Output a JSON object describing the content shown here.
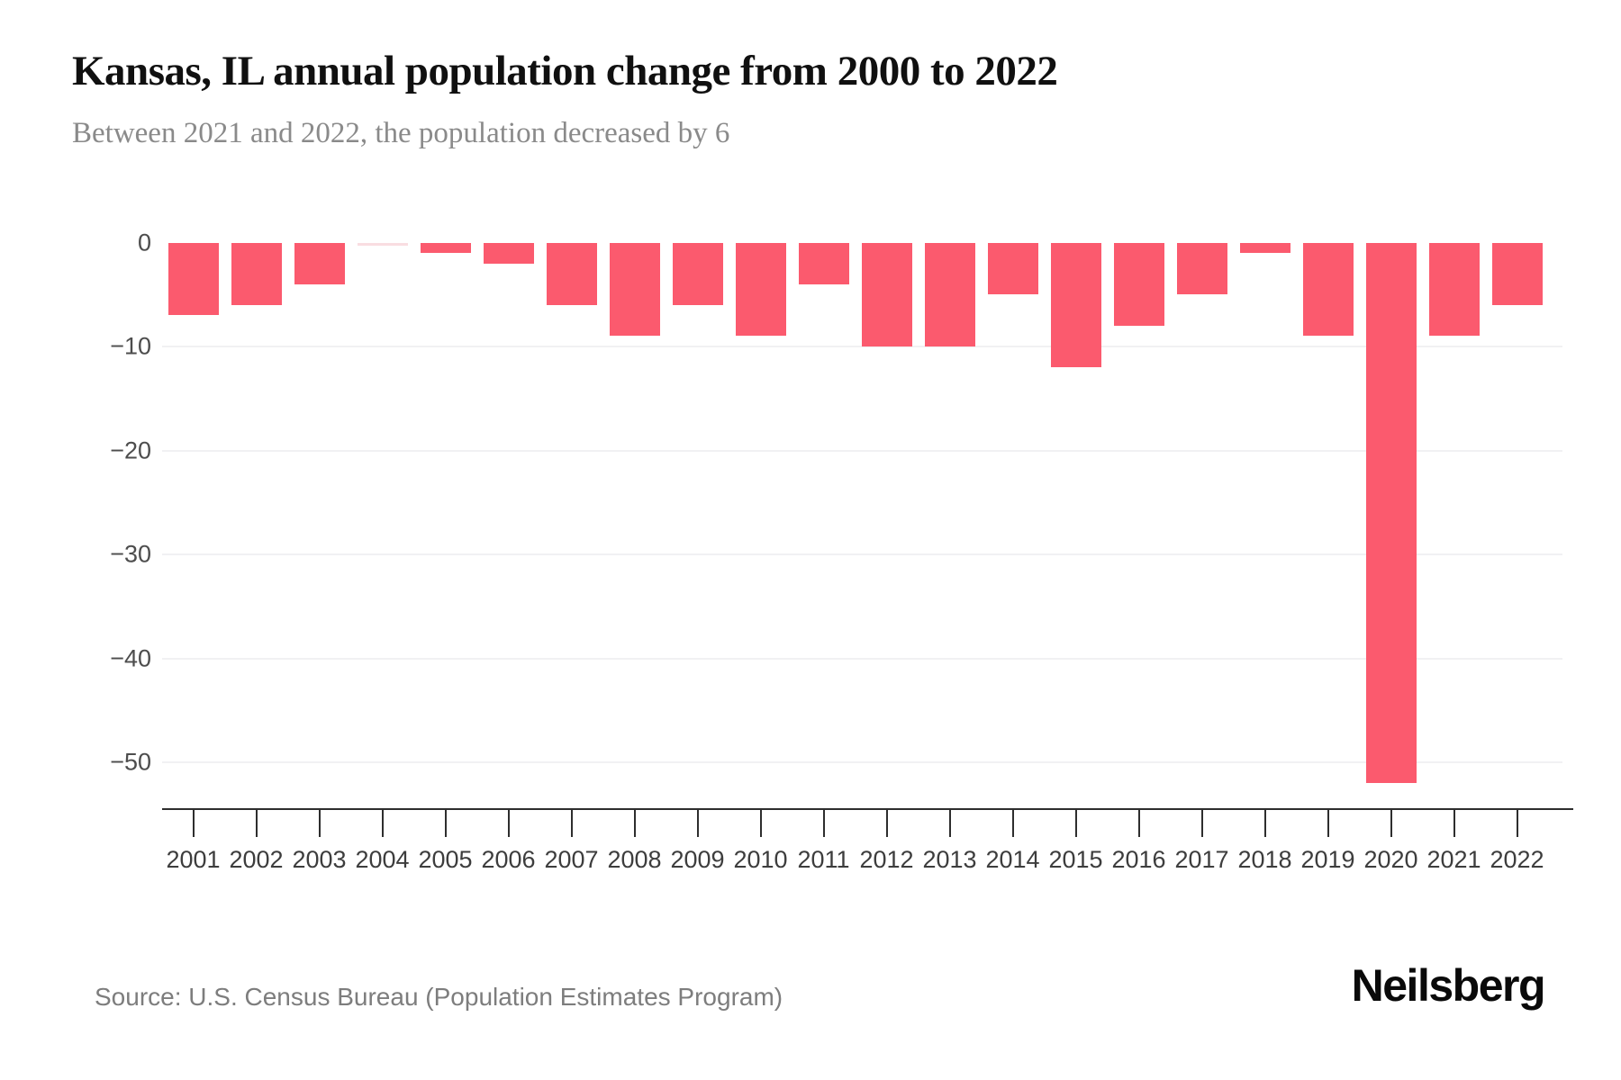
{
  "header": {
    "title": "Kansas, IL annual population change from 2000 to 2022",
    "subtitle": "Between 2021 and 2022, the population decreased by 6"
  },
  "footer": {
    "source": "Source: U.S. Census Bureau (Population Estimates Program)",
    "logo": "Neilsberg"
  },
  "colors": {
    "bar": "#fb5a6e",
    "zero_value_bar": "#f9dde1",
    "gridline": "#f1f1f3",
    "axis": "#2e2e2e"
  },
  "chart_data": {
    "type": "bar",
    "title": "Kansas, IL annual population change from 2000 to 2022",
    "xlabel": "",
    "ylabel": "",
    "categories": [
      "2001",
      "2002",
      "2003",
      "2004",
      "2005",
      "2006",
      "2007",
      "2008",
      "2009",
      "2010",
      "2011",
      "2012",
      "2013",
      "2014",
      "2015",
      "2016",
      "2017",
      "2018",
      "2019",
      "2020",
      "2021",
      "2022"
    ],
    "values": [
      -7,
      -6,
      -4,
      0,
      -1,
      -2,
      -6,
      -9,
      -6,
      -9,
      -4,
      -10,
      -10,
      -5,
      -12,
      -8,
      -5,
      -1,
      -9,
      -52,
      -9,
      -6
    ],
    "ylim": [
      -55,
      0
    ],
    "y_ticks": [
      0,
      -10,
      -20,
      -30,
      -40,
      -50
    ],
    "y_tick_labels": [
      "0",
      "−10",
      "−20",
      "−30",
      "−40",
      "−50"
    ],
    "grid": "horizontal-only",
    "legend": "none"
  }
}
